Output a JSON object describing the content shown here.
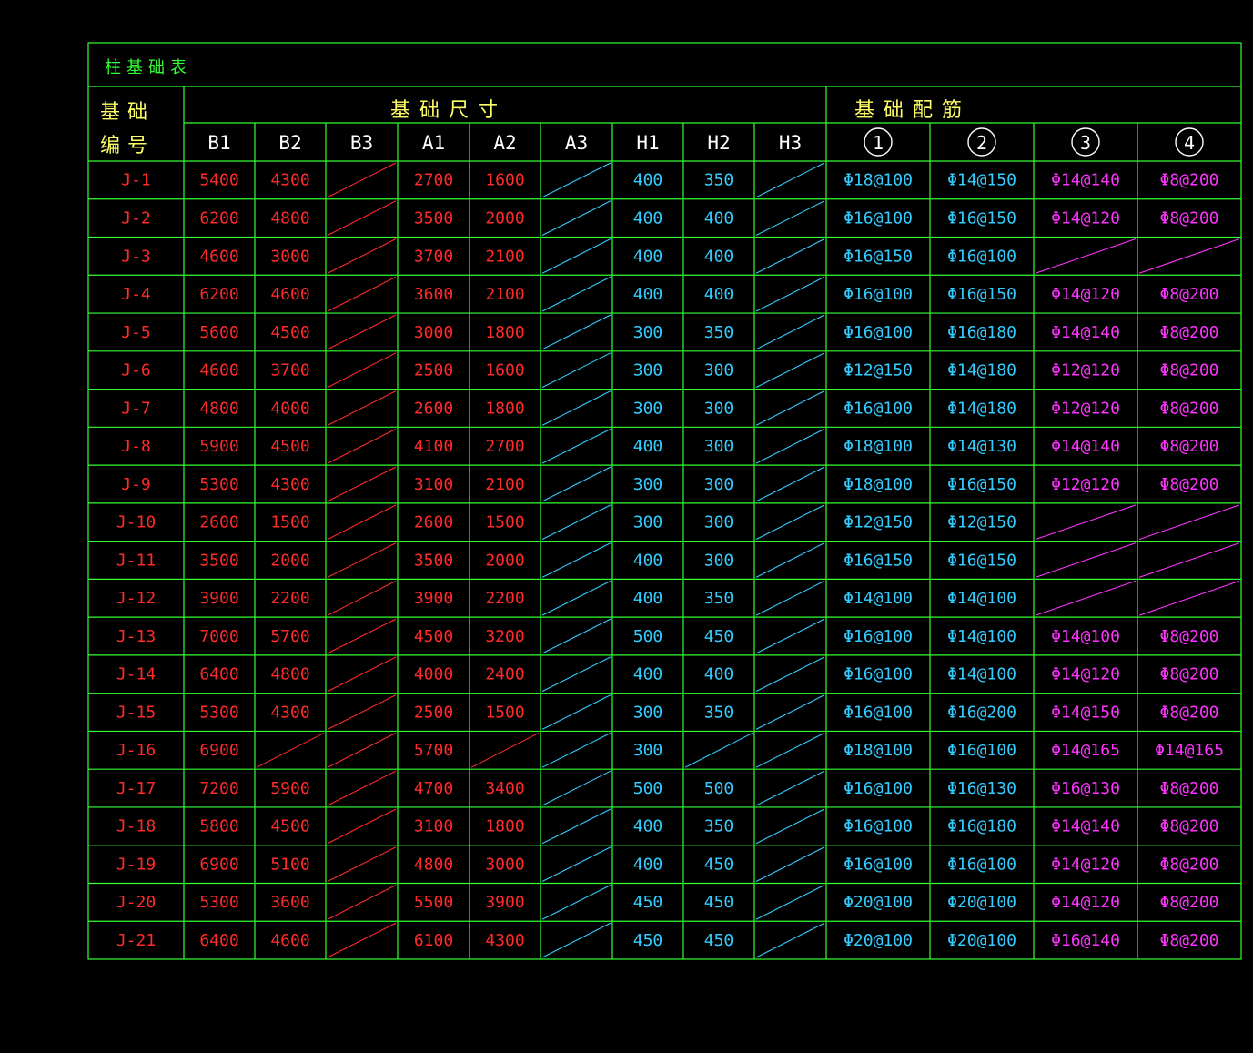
{
  "title": "柱基础表",
  "headers": {
    "id_line1": "基础",
    "id_line2": "编号",
    "dims_group": "基础尺寸",
    "rebar_group": "基础配筋",
    "cols": [
      "B1",
      "B2",
      "B3",
      "A1",
      "A2",
      "A3",
      "H1",
      "H2",
      "H3",
      "1",
      "2",
      "3",
      "4"
    ]
  },
  "colors": {
    "grid": "#33ff33",
    "red": "#ff2a2a",
    "cyan": "#33ccff",
    "magenta": "#ff33ff",
    "yellow": "#ffff66",
    "title": "#33ff33"
  },
  "rows": [
    {
      "id": "J-1",
      "B1": "5400",
      "B2": "4300",
      "A1": "2700",
      "A2": "1600",
      "H1": "400",
      "H2": "350",
      "r1": "Φ18@100",
      "r2": "Φ14@150",
      "r3": "Φ14@140",
      "r4": "Φ8@200"
    },
    {
      "id": "J-2",
      "B1": "6200",
      "B2": "4800",
      "A1": "3500",
      "A2": "2000",
      "H1": "400",
      "H2": "400",
      "r1": "Φ16@100",
      "r2": "Φ16@150",
      "r3": "Φ14@120",
      "r4": "Φ8@200"
    },
    {
      "id": "J-3",
      "B1": "4600",
      "B2": "3000",
      "A1": "3700",
      "A2": "2100",
      "H1": "400",
      "H2": "400",
      "r1": "Φ16@150",
      "r2": "Φ16@100",
      "r3": "",
      "r4": ""
    },
    {
      "id": "J-4",
      "B1": "6200",
      "B2": "4600",
      "A1": "3600",
      "A2": "2100",
      "H1": "400",
      "H2": "400",
      "r1": "Φ16@100",
      "r2": "Φ16@150",
      "r3": "Φ14@120",
      "r4": "Φ8@200"
    },
    {
      "id": "J-5",
      "B1": "5600",
      "B2": "4500",
      "A1": "3000",
      "A2": "1800",
      "H1": "300",
      "H2": "350",
      "r1": "Φ16@100",
      "r2": "Φ16@180",
      "r3": "Φ14@140",
      "r4": "Φ8@200"
    },
    {
      "id": "J-6",
      "B1": "4600",
      "B2": "3700",
      "A1": "2500",
      "A2": "1600",
      "H1": "300",
      "H2": "300",
      "r1": "Φ12@150",
      "r2": "Φ14@180",
      "r3": "Φ12@120",
      "r4": "Φ8@200"
    },
    {
      "id": "J-7",
      "B1": "4800",
      "B2": "4000",
      "A1": "2600",
      "A2": "1800",
      "H1": "300",
      "H2": "300",
      "r1": "Φ16@100",
      "r2": "Φ14@180",
      "r3": "Φ12@120",
      "r4": "Φ8@200"
    },
    {
      "id": "J-8",
      "B1": "5900",
      "B2": "4500",
      "A1": "4100",
      "A2": "2700",
      "H1": "400",
      "H2": "300",
      "r1": "Φ18@100",
      "r2": "Φ14@130",
      "r3": "Φ14@140",
      "r4": "Φ8@200"
    },
    {
      "id": "J-9",
      "B1": "5300",
      "B2": "4300",
      "A1": "3100",
      "A2": "2100",
      "H1": "300",
      "H2": "300",
      "r1": "Φ18@100",
      "r2": "Φ16@150",
      "r3": "Φ12@120",
      "r4": "Φ8@200"
    },
    {
      "id": "J-10",
      "B1": "2600",
      "B2": "1500",
      "A1": "2600",
      "A2": "1500",
      "H1": "300",
      "H2": "300",
      "r1": "Φ12@150",
      "r2": "Φ12@150",
      "r3": "",
      "r4": ""
    },
    {
      "id": "J-11",
      "B1": "3500",
      "B2": "2000",
      "A1": "3500",
      "A2": "2000",
      "H1": "400",
      "H2": "300",
      "r1": "Φ16@150",
      "r2": "Φ16@150",
      "r3": "",
      "r4": ""
    },
    {
      "id": "J-12",
      "B1": "3900",
      "B2": "2200",
      "A1": "3900",
      "A2": "2200",
      "H1": "400",
      "H2": "350",
      "r1": "Φ14@100",
      "r2": "Φ14@100",
      "r3": "",
      "r4": ""
    },
    {
      "id": "J-13",
      "B1": "7000",
      "B2": "5700",
      "A1": "4500",
      "A2": "3200",
      "H1": "500",
      "H2": "450",
      "r1": "Φ16@100",
      "r2": "Φ14@100",
      "r3": "Φ14@100",
      "r4": "Φ8@200"
    },
    {
      "id": "J-14",
      "B1": "6400",
      "B2": "4800",
      "A1": "4000",
      "A2": "2400",
      "H1": "400",
      "H2": "400",
      "r1": "Φ16@100",
      "r2": "Φ14@100",
      "r3": "Φ14@120",
      "r4": "Φ8@200"
    },
    {
      "id": "J-15",
      "B1": "5300",
      "B2": "4300",
      "A1": "2500",
      "A2": "1500",
      "H1": "300",
      "H2": "350",
      "r1": "Φ16@100",
      "r2": "Φ16@200",
      "r3": "Φ14@150",
      "r4": "Φ8@200"
    },
    {
      "id": "J-16",
      "B1": "6900",
      "B2": "",
      "A1": "5700",
      "A2": "",
      "H1": "300",
      "H2": "",
      "r1": "Φ18@100",
      "r2": "Φ16@100",
      "r3": "Φ14@165",
      "r4": "Φ14@165"
    },
    {
      "id": "J-17",
      "B1": "7200",
      "B2": "5900",
      "A1": "4700",
      "A2": "3400",
      "H1": "500",
      "H2": "500",
      "r1": "Φ16@100",
      "r2": "Φ16@130",
      "r3": "Φ16@130",
      "r4": "Φ8@200"
    },
    {
      "id": "J-18",
      "B1": "5800",
      "B2": "4500",
      "A1": "3100",
      "A2": "1800",
      "H1": "400",
      "H2": "350",
      "r1": "Φ16@100",
      "r2": "Φ16@180",
      "r3": "Φ14@140",
      "r4": "Φ8@200"
    },
    {
      "id": "J-19",
      "B1": "6900",
      "B2": "5100",
      "A1": "4800",
      "A2": "3000",
      "H1": "400",
      "H2": "450",
      "r1": "Φ16@100",
      "r2": "Φ16@100",
      "r3": "Φ14@120",
      "r4": "Φ8@200"
    },
    {
      "id": "J-20",
      "B1": "5300",
      "B2": "3600",
      "A1": "5500",
      "A2": "3900",
      "H1": "450",
      "H2": "450",
      "r1": "Φ20@100",
      "r2": "Φ20@100",
      "r3": "Φ14@120",
      "r4": "Φ8@200"
    },
    {
      "id": "J-21",
      "B1": "6400",
      "B2": "4600",
      "A1": "6100",
      "A2": "4300",
      "H1": "450",
      "H2": "450",
      "r1": "Φ20@100",
      "r2": "Φ20@100",
      "r3": "Φ16@140",
      "r4": "Φ8@200"
    }
  ]
}
